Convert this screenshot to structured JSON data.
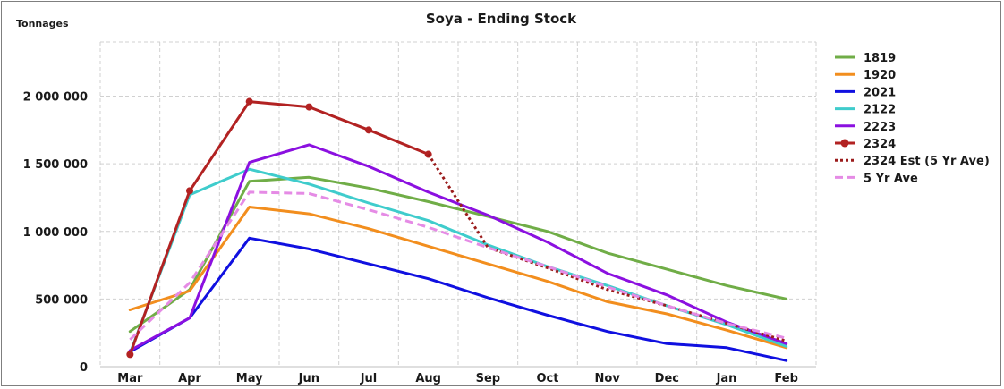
{
  "chart_data": {
    "type": "line",
    "title": "Soya - Ending Stock",
    "ylabel": "Tonnages",
    "xlabel": "",
    "categories": [
      "Mar",
      "Apr",
      "May",
      "Jun",
      "Jul",
      "Aug",
      "Sep",
      "Oct",
      "Nov",
      "Dec",
      "Jan",
      "Feb"
    ],
    "ylim": [
      0,
      2400000
    ],
    "yticks": [
      0,
      500000,
      1000000,
      1500000,
      2000000
    ],
    "ytick_labels": [
      "0",
      "500 000",
      "1 000 000",
      "1 500 000",
      "2 000 000"
    ],
    "grid": true,
    "legend_position": "right",
    "series": [
      {
        "name": "1819",
        "color": "#70ad47",
        "style": "solid",
        "marker": false,
        "values": [
          260000,
          570000,
          1370000,
          1400000,
          1320000,
          1220000,
          1110000,
          1000000,
          840000,
          720000,
          600000,
          500000
        ]
      },
      {
        "name": "1920",
        "color": "#f28e1e",
        "style": "solid",
        "marker": false,
        "values": [
          420000,
          560000,
          1180000,
          1130000,
          1020000,
          890000,
          760000,
          630000,
          480000,
          390000,
          270000,
          140000
        ]
      },
      {
        "name": "2021",
        "color": "#1010e0",
        "style": "solid",
        "marker": false,
        "values": [
          110000,
          360000,
          950000,
          870000,
          760000,
          650000,
          510000,
          380000,
          260000,
          170000,
          140000,
          45000
        ]
      },
      {
        "name": "2122",
        "color": "#3fcccc",
        "style": "solid",
        "marker": false,
        "values": [
          100000,
          1270000,
          1460000,
          1350000,
          1210000,
          1080000,
          900000,
          740000,
          600000,
          450000,
          310000,
          150000
        ]
      },
      {
        "name": "2223",
        "color": "#8b10e0",
        "style": "solid",
        "marker": false,
        "values": [
          120000,
          360000,
          1510000,
          1640000,
          1480000,
          1290000,
          1120000,
          920000,
          690000,
          530000,
          330000,
          170000
        ]
      },
      {
        "name": "2324",
        "color": "#b22222",
        "style": "solid",
        "marker": true,
        "values": [
          90000,
          1300000,
          1960000,
          1920000,
          1750000,
          1570000,
          null,
          null,
          null,
          null,
          null,
          null
        ]
      },
      {
        "name": "2324 Est (5 Yr Ave)",
        "color": "#9b1c1c",
        "style": "dotted",
        "marker": false,
        "values": [
          null,
          null,
          null,
          null,
          null,
          1570000,
          880000,
          730000,
          570000,
          450000,
          320000,
          190000
        ]
      },
      {
        "name": "5 Yr Ave",
        "color": "#e58be5",
        "style": "dashed",
        "marker": false,
        "values": [
          200000,
          620000,
          1290000,
          1280000,
          1160000,
          1030000,
          880000,
          740000,
          590000,
          450000,
          320000,
          210000
        ]
      }
    ]
  }
}
